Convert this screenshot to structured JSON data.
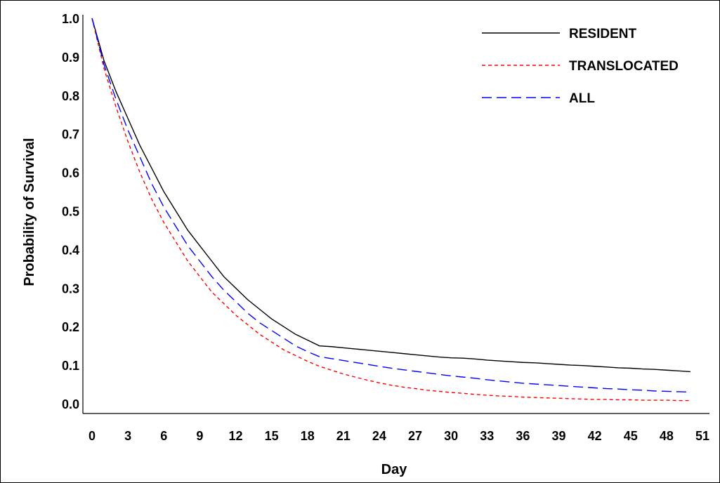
{
  "chart_data": {
    "type": "line",
    "xlabel": "Day",
    "ylabel": "Probability of Survival",
    "xlim": [
      0,
      51
    ],
    "ylim": [
      0.0,
      1.0
    ],
    "xticks": [
      "0",
      "3",
      "6",
      "9",
      "12",
      "15",
      "18",
      "21",
      "24",
      "27",
      "30",
      "33",
      "36",
      "39",
      "42",
      "45",
      "48",
      "51"
    ],
    "yticks": [
      "0.0",
      "0.1",
      "0.2",
      "0.3",
      "0.4",
      "0.5",
      "0.6",
      "0.7",
      "0.8",
      "0.9",
      "1.0"
    ],
    "grid": false,
    "legend_position": "top-right",
    "x": [
      0,
      1,
      2,
      3,
      4,
      5,
      6,
      7,
      8,
      9,
      10,
      11,
      12,
      13,
      14,
      15,
      16,
      17,
      18,
      19,
      20,
      21,
      22,
      23,
      24,
      25,
      26,
      27,
      28,
      29,
      30,
      31,
      32,
      33,
      34,
      35,
      36,
      37,
      38,
      39,
      40,
      41,
      42,
      43,
      44,
      45,
      46,
      47,
      48,
      49,
      50
    ],
    "series": [
      {
        "name": "RESIDENT",
        "color": "#000000",
        "dash": "solid",
        "values": [
          1.0,
          0.89,
          0.81,
          0.74,
          0.67,
          0.61,
          0.55,
          0.5,
          0.45,
          0.41,
          0.37,
          0.33,
          0.3,
          0.27,
          0.245,
          0.22,
          0.2,
          0.18,
          0.165,
          0.15,
          0.148,
          0.145,
          0.142,
          0.139,
          0.136,
          0.133,
          0.13,
          0.127,
          0.124,
          0.121,
          0.119,
          0.118,
          0.116,
          0.113,
          0.111,
          0.109,
          0.107,
          0.106,
          0.104,
          0.102,
          0.1,
          0.099,
          0.097,
          0.095,
          0.093,
          0.092,
          0.09,
          0.089,
          0.087,
          0.085,
          0.083
        ]
      },
      {
        "name": "TRANSLOCATED",
        "color": "#ff0000",
        "dash": "short",
        "values": [
          1.0,
          0.87,
          0.77,
          0.68,
          0.6,
          0.53,
          0.47,
          0.42,
          0.37,
          0.33,
          0.29,
          0.26,
          0.23,
          0.205,
          0.18,
          0.16,
          0.14,
          0.125,
          0.11,
          0.097,
          0.087,
          0.077,
          0.069,
          0.061,
          0.054,
          0.048,
          0.043,
          0.039,
          0.035,
          0.032,
          0.029,
          0.027,
          0.024,
          0.022,
          0.02,
          0.019,
          0.017,
          0.016,
          0.015,
          0.014,
          0.013,
          0.012,
          0.011,
          0.011,
          0.01,
          0.01,
          0.009,
          0.009,
          0.009,
          0.008,
          0.008
        ]
      },
      {
        "name": "ALL",
        "color": "#0000ff",
        "dash": "long",
        "values": [
          1.0,
          0.88,
          0.79,
          0.71,
          0.64,
          0.57,
          0.51,
          0.46,
          0.41,
          0.37,
          0.33,
          0.295,
          0.265,
          0.235,
          0.21,
          0.19,
          0.17,
          0.15,
          0.135,
          0.122,
          0.117,
          0.112,
          0.107,
          0.102,
          0.097,
          0.092,
          0.088,
          0.084,
          0.08,
          0.076,
          0.072,
          0.069,
          0.066,
          0.062,
          0.059,
          0.056,
          0.053,
          0.051,
          0.049,
          0.047,
          0.045,
          0.043,
          0.041,
          0.039,
          0.038,
          0.036,
          0.035,
          0.033,
          0.032,
          0.031,
          0.03
        ]
      }
    ]
  }
}
